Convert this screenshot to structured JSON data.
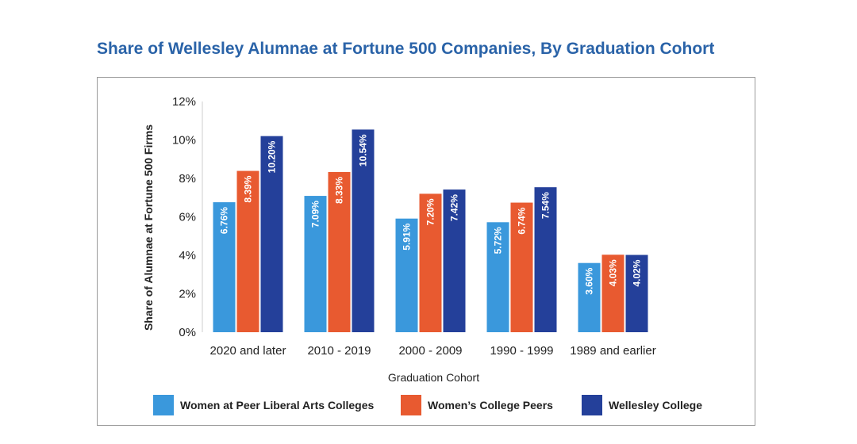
{
  "chart_data": {
    "type": "bar",
    "title": "Share of Wellesley Alumnae at Fortune 500 Companies, By Graduation Cohort",
    "xlabel": "Graduation Cohort",
    "ylabel": "Share of Alumnae at Fortune 500 Firms",
    "ylim": [
      0,
      12
    ],
    "yticks": [
      "0%",
      "2%",
      "4%",
      "6%",
      "8%",
      "10%",
      "12%"
    ],
    "categories": [
      "2020 and later",
      "2010 - 2019",
      "2000 - 2009",
      "1990 - 1999",
      "1989 and earlier"
    ],
    "series": [
      {
        "name": "Women at Peer Liberal Arts Colleges",
        "color": "#3a98dc",
        "values": [
          6.76,
          7.09,
          5.91,
          5.72,
          3.6
        ],
        "labels": [
          "6.76%",
          "7.09%",
          "5.91%",
          "5.72%",
          "3.60%"
        ]
      },
      {
        "name": "Women’s College Peers",
        "color": "#e85a30",
        "values": [
          8.39,
          8.33,
          7.2,
          6.74,
          4.03
        ],
        "labels": [
          "8.39%",
          "8.33%",
          "7.20%",
          "6.74%",
          "4.03%"
        ]
      },
      {
        "name": "Wellesley College",
        "color": "#24409a",
        "values": [
          10.2,
          10.54,
          7.42,
          7.54,
          4.02
        ],
        "labels": [
          "10.20%",
          "10.54%",
          "7.42%",
          "7.54%",
          "4.02%"
        ]
      }
    ],
    "legend_position": "bottom",
    "grid": false
  }
}
